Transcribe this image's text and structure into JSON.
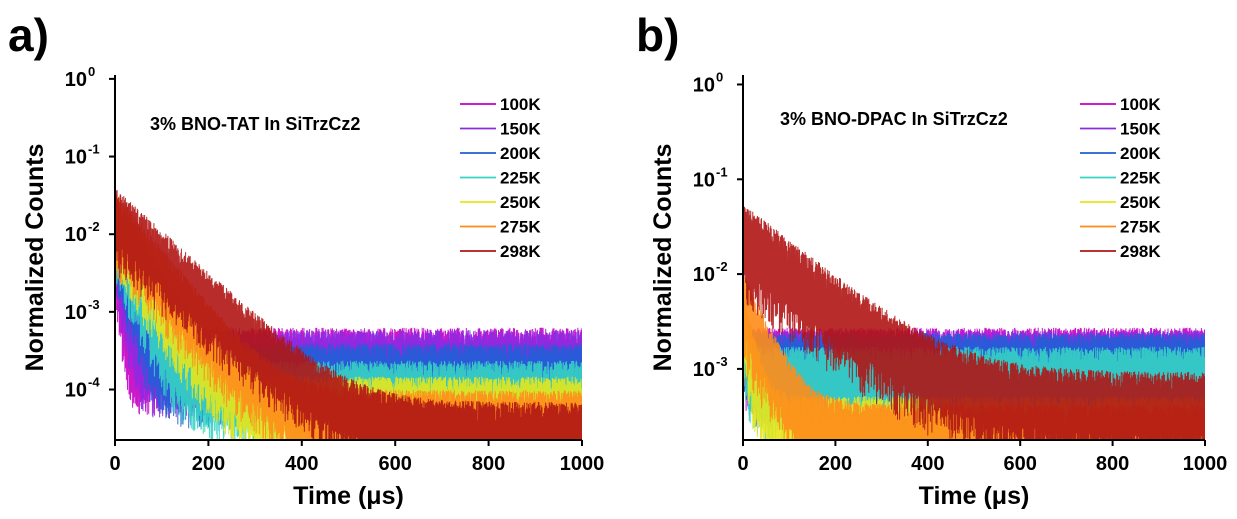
{
  "panels": [
    {
      "letter": "a)",
      "chart_data": {
        "type": "line",
        "annotation": "3% BNO-TAT In SiTrzCz2",
        "xlabel": "Time (μs)",
        "ylabel": "Normalized Counts",
        "xlim": [
          0,
          1000
        ],
        "ylim_log10": [
          -4.65,
          0.05
        ],
        "yscale": "log",
        "xticks": [
          0,
          200,
          400,
          600,
          800,
          1000
        ],
        "yticks": [
          {
            "exp": -4,
            "label": "10",
            "sup": "-4"
          },
          {
            "exp": -3,
            "label": "10",
            "sup": "-3"
          },
          {
            "exp": -2,
            "label": "10",
            "sup": "-2"
          },
          {
            "exp": -1,
            "label": "10",
            "sup": "-1"
          },
          {
            "exp": 0,
            "label": "10",
            "sup": "0"
          }
        ],
        "legend_position": "top-right",
        "series": [
          {
            "name": "100K",
            "color": "#c400c4",
            "t0": 0.008,
            "tau": 8,
            "floor": 0.0003,
            "noise": 0.9
          },
          {
            "name": "150K",
            "color": "#8a2be2",
            "t0": 0.01,
            "tau": 12,
            "floor": 0.00028,
            "noise": 0.9
          },
          {
            "name": "200K",
            "color": "#1f5fd6",
            "t0": 0.012,
            "tau": 20,
            "floor": 0.0002,
            "noise": 0.8
          },
          {
            "name": "225K",
            "color": "#35d3c4",
            "t0": 0.014,
            "tau": 30,
            "floor": 0.00012,
            "noise": 0.8
          },
          {
            "name": "250K",
            "color": "#e6e619",
            "t0": 0.016,
            "tau": 45,
            "floor": 7.5e-05,
            "noise": 0.8
          },
          {
            "name": "275K",
            "color": "#ff8c1a",
            "t0": 0.018,
            "tau": 60,
            "floor": 5e-05,
            "noise": 0.8
          },
          {
            "name": "298K",
            "color": "#b01515",
            "t0": 0.02,
            "tau": 80,
            "floor": 3.5e-05,
            "noise": 0.8
          }
        ]
      }
    },
    {
      "letter": "b)",
      "chart_data": {
        "type": "line",
        "annotation": "3% BNO-DPAC In SiTrzCz2",
        "xlabel": "Time (μs)",
        "ylabel": "Normalized Counts",
        "xlim": [
          0,
          1000
        ],
        "ylim_log10": [
          -3.75,
          0.1
        ],
        "yscale": "log",
        "xticks": [
          0,
          200,
          400,
          600,
          800,
          1000
        ],
        "yticks": [
          {
            "exp": -3,
            "label": "10",
            "sup": "-3"
          },
          {
            "exp": -2,
            "label": "10",
            "sup": "-2"
          },
          {
            "exp": -1,
            "label": "10",
            "sup": "-1"
          },
          {
            "exp": 0,
            "label": "10",
            "sup": "0"
          }
        ],
        "legend_position": "top-right",
        "series": [
          {
            "name": "100K",
            "color": "#c400c4",
            "t0": 0.0025,
            "tau": 5,
            "floor": 0.0017,
            "noise": 0.5
          },
          {
            "name": "150K",
            "color": "#8a2be2",
            "t0": 0.0025,
            "tau": 6,
            "floor": 0.0016,
            "noise": 0.5
          },
          {
            "name": "200K",
            "color": "#1f5fd6",
            "t0": 0.003,
            "tau": 8,
            "floor": 0.0015,
            "noise": 0.5
          },
          {
            "name": "225K",
            "color": "#35d3c4",
            "t0": 0.003,
            "tau": 8,
            "floor": 0.001,
            "noise": 0.6
          },
          {
            "name": "250K",
            "color": "#e6e619",
            "t0": 0.0035,
            "tau": 20,
            "floor": 0.0003,
            "noise": 0.6
          },
          {
            "name": "275K",
            "color": "#ff8c1a",
            "t0": 0.006,
            "tau": 40,
            "floor": 0.00025,
            "noise": 0.6
          },
          {
            "name": "298K",
            "color": "#b01515",
            "t0": 0.03,
            "tau": 110,
            "floor": 0.0005,
            "noise": 0.7
          }
        ]
      }
    }
  ]
}
